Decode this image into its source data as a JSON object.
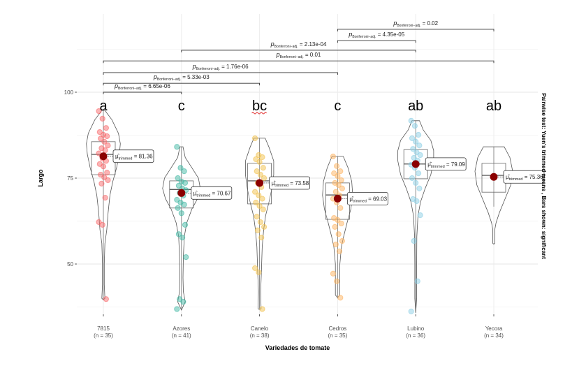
{
  "chart_data": {
    "type": "violin",
    "xlabel": "Variedades de tomate",
    "ylabel": "Largo",
    "ylim": [
      35,
      123
    ],
    "yticks": [
      50,
      75,
      100
    ],
    "grid": true,
    "subtitle_right": "Pairwise test: Yuen's trimmed means , Bars shown: significant",
    "mean_symbol": "μ̂",
    "mean_subscript": "trimmed",
    "p_symbol": "p",
    "p_subscript": "Bonferroni−adj.",
    "groups": [
      {
        "name": "7815",
        "n_label": "(n = 35)",
        "letter": "a",
        "color": "#F8696B",
        "mean": 81.36,
        "mean_label": "81.36",
        "box": [
          76.0,
          81.9,
          85.6
        ],
        "whisker": [
          39.8,
          94.7
        ],
        "violin": [
          [
            94.7,
            0.08
          ],
          [
            92,
            0.45
          ],
          [
            88,
            0.8
          ],
          [
            85,
            0.9
          ],
          [
            82,
            0.85
          ],
          [
            78,
            0.7
          ],
          [
            74,
            0.5
          ],
          [
            70,
            0.35
          ],
          [
            65,
            0.25
          ],
          [
            60,
            0.18
          ],
          [
            56,
            0.08
          ],
          [
            50,
            0.05
          ],
          [
            44,
            0.05
          ],
          [
            40,
            0.08
          ],
          [
            39.6,
            0
          ]
        ],
        "points": [
          94.5,
          92.3,
          89.6,
          88.4,
          87.6,
          87.2,
          86.5,
          85.6,
          84.5,
          83.7,
          83.1,
          82.2,
          80.7,
          80.0,
          79.1,
          78.4,
          76.6,
          76.0,
          75.2,
          74.4,
          73.4,
          69.3,
          62.2,
          61.4,
          39.8
        ]
      },
      {
        "name": "Azores",
        "n_label": "(n = 41)",
        "letter": "c",
        "color": "#45B9A5",
        "mean": 70.67,
        "mean_label": "70.67",
        "box": [
          66.3,
          71.7,
          74.2
        ],
        "whisker": [
          36.8,
          84.1
        ],
        "violin": [
          [
            84.1,
            0.08
          ],
          [
            81,
            0.2
          ],
          [
            78,
            0.55
          ],
          [
            75,
            0.9
          ],
          [
            72,
            1.0
          ],
          [
            69,
            0.85
          ],
          [
            66,
            0.55
          ],
          [
            62,
            0.28
          ],
          [
            58,
            0.15
          ],
          [
            52,
            0.1
          ],
          [
            46,
            0.08
          ],
          [
            42,
            0.1
          ],
          [
            39,
            0.2
          ],
          [
            36.6,
            0
          ]
        ],
        "points": [
          84.1,
          78.0,
          77.0,
          75.0,
          74.0,
          73.6,
          72.8,
          72.0,
          71.5,
          70.7,
          69.9,
          68.7,
          67.9,
          67.3,
          66.3,
          64.8,
          61.4,
          58.7,
          57.7,
          52.0,
          39.8,
          39.0,
          36.9
        ]
      },
      {
        "name": "Canelo",
        "n_label": "(n = 38)",
        "letter": "bc",
        "color": "#F2C14E",
        "mean": 73.58,
        "mean_label": "73.58",
        "box": [
          67.5,
          74.2,
          79.3
        ],
        "whisker": [
          36.9,
          86.6
        ],
        "violin": [
          [
            86.6,
            0.3
          ],
          [
            84,
            0.5
          ],
          [
            80,
            0.75
          ],
          [
            76,
            0.75
          ],
          [
            72,
            0.65
          ],
          [
            68,
            0.5
          ],
          [
            64,
            0.32
          ],
          [
            60,
            0.22
          ],
          [
            55,
            0.14
          ],
          [
            48,
            0.1
          ],
          [
            42,
            0.06
          ],
          [
            37,
            0.08
          ],
          [
            36.8,
            0
          ]
        ],
        "points": [
          86.6,
          81.7,
          81.1,
          80.5,
          79.7,
          78.0,
          77.0,
          76.0,
          75.0,
          73.6,
          72.4,
          71.0,
          70.0,
          69.0,
          67.9,
          66.9,
          65.9,
          63.8,
          62.2,
          60.8,
          59.8,
          57.7,
          48.8,
          47.6,
          36.9
        ]
      },
      {
        "name": "Cedros",
        "n_label": "(n = 35)",
        "letter": "c",
        "color": "#FDB462",
        "mean": 69.03,
        "mean_label": "69.03",
        "box": [
          63.0,
          70.1,
          73.6
        ],
        "whisker": [
          40.0,
          81.3
        ],
        "violin": [
          [
            81.3,
            0.3
          ],
          [
            78,
            0.55
          ],
          [
            74,
            0.75
          ],
          [
            70,
            0.8
          ],
          [
            66,
            0.7
          ],
          [
            62,
            0.5
          ],
          [
            58,
            0.32
          ],
          [
            55,
            0.2
          ],
          [
            50,
            0.12
          ],
          [
            45,
            0.12
          ],
          [
            41,
            0.12
          ],
          [
            40.2,
            0
          ]
        ],
        "points": [
          81.3,
          78.5,
          77.0,
          76.4,
          75.6,
          74.4,
          73.6,
          73.0,
          72.0,
          71.0,
          70.0,
          69.0,
          67.9,
          66.3,
          63.4,
          62.8,
          61.8,
          60.8,
          58.7,
          56.7,
          55.7,
          53.7,
          47.2,
          45.0,
          40.2
        ]
      },
      {
        "name": "Lubino",
        "n_label": "(n = 36)",
        "letter": "ab",
        "color": "#8ED0E6",
        "mean": 79.09,
        "mean_label": "79.09",
        "box": [
          74.8,
          79.1,
          83.3
        ],
        "whisker": [
          35.9,
          91.7
        ],
        "violin": [
          [
            91.7,
            0.2
          ],
          [
            89,
            0.4
          ],
          [
            86,
            0.8
          ],
          [
            83,
            0.95
          ],
          [
            80,
            0.95
          ],
          [
            76,
            0.8
          ],
          [
            72,
            0.5
          ],
          [
            68,
            0.25
          ],
          [
            64,
            0.12
          ],
          [
            58,
            0.06
          ],
          [
            50,
            0.05
          ],
          [
            40,
            0.05
          ],
          [
            35.8,
            0
          ]
        ],
        "points": [
          91.7,
          90.2,
          87.6,
          86.6,
          85.6,
          84.5,
          83.5,
          82.5,
          81.7,
          80.9,
          80.1,
          78.9,
          78.0,
          76.4,
          75.0,
          73.6,
          72.0,
          68.9,
          68.3,
          64.2,
          56.7,
          45.0,
          36.2
        ]
      },
      {
        "name": "Yecora",
        "n_label": "(n = 34)",
        "letter": "ab",
        "color": "#999999",
        "mean": 75.36,
        "mean_label": "75.36",
        "box": [
          70.9,
          75.8,
          79.3
        ],
        "whisker": [
          66.7,
          84.1
        ],
        "violin": [
          [
            84.1,
            0.55
          ],
          [
            81,
            0.85
          ],
          [
            77,
            1.0
          ],
          [
            73,
            0.9
          ],
          [
            69,
            0.6
          ],
          [
            65,
            0.3
          ],
          [
            62,
            0.12
          ],
          [
            60,
            0.05
          ],
          [
            56,
            0.05
          ],
          [
            55.8,
            0
          ]
        ],
        "points": []
      }
    ],
    "comparisons": [
      {
        "from": 0,
        "to": 1,
        "y": 100.0,
        "p": "6.65e-06"
      },
      {
        "from": 0,
        "to": 2,
        "y": 102.6,
        "p": "5.33e-03"
      },
      {
        "from": 0,
        "to": 3,
        "y": 105.7,
        "p": "1.76e-06"
      },
      {
        "from": 0,
        "to": 5,
        "y": 109.1,
        "p": "0.01"
      },
      {
        "from": 1,
        "to": 4,
        "y": 112.2,
        "p": "2.13e-04"
      },
      {
        "from": 3,
        "to": 4,
        "y": 115.0,
        "p": "4.35e-05"
      },
      {
        "from": 3,
        "to": 5,
        "y": 118.3,
        "p": "0.02"
      }
    ]
  }
}
